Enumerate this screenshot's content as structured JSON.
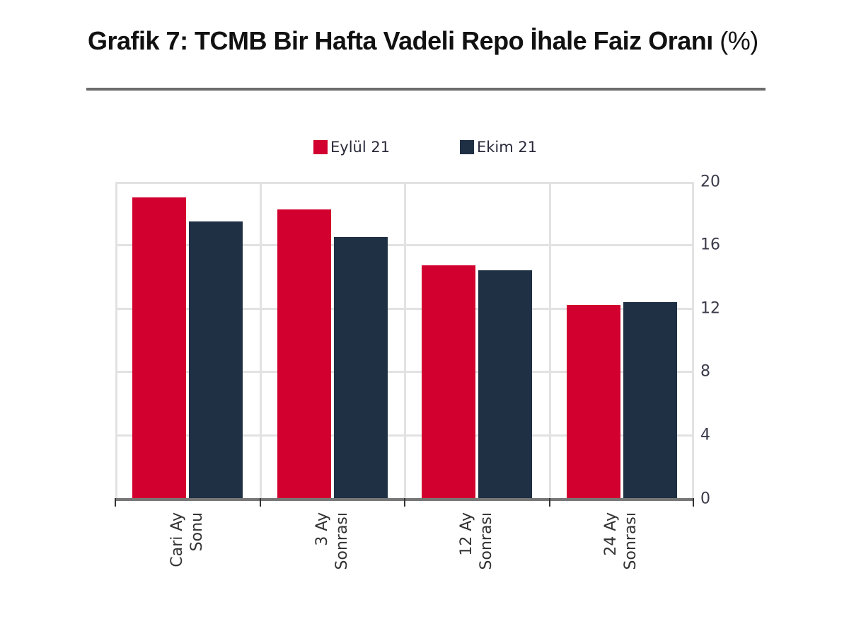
{
  "title": {
    "main": "Grafik 7: TCMB Bir Hafta Vadeli Repo İhale Faiz Oranı",
    "unit": "(%)"
  },
  "legend": [
    {
      "label": "Eylül 21",
      "color": "#d2002e"
    },
    {
      "label": "Ekim 21",
      "color": "#1f3045"
    }
  ],
  "y_axis": {
    "ticks": [
      "20",
      "16",
      "12",
      "8",
      "4",
      "0"
    ],
    "position": "right"
  },
  "x_axis": {
    "labels": [
      {
        "line1": "Cari Ay",
        "line2": "Sonu"
      },
      {
        "line1": "3 Ay",
        "line2": "Sonrası"
      },
      {
        "line1": "12 Ay",
        "line2": "Sonrası"
      },
      {
        "line1": "24 Ay",
        "line2": "Sonrası"
      }
    ]
  },
  "chart_data": {
    "type": "bar",
    "title": "Grafik 7: TCMB Bir Hafta Vadeli Repo İhale Faiz Oranı (%)",
    "xlabel": "",
    "ylabel": "%",
    "categories": [
      "Cari Ay Sonu",
      "3 Ay Sonrası",
      "12 Ay Sonrası",
      "24 Ay Sonrası"
    ],
    "series": [
      {
        "name": "Eylül 21",
        "color": "#d2002e",
        "values": [
          19.0,
          18.25,
          14.75,
          12.25
        ]
      },
      {
        "name": "Ekim 21",
        "color": "#1f3045",
        "values": [
          17.5,
          16.5,
          14.4,
          12.4
        ]
      }
    ],
    "ylim": [
      0,
      20
    ],
    "yticks": [
      0,
      4,
      8,
      12,
      16,
      20
    ],
    "grid": true,
    "legend_position": "top",
    "y_axis_side": "right"
  }
}
